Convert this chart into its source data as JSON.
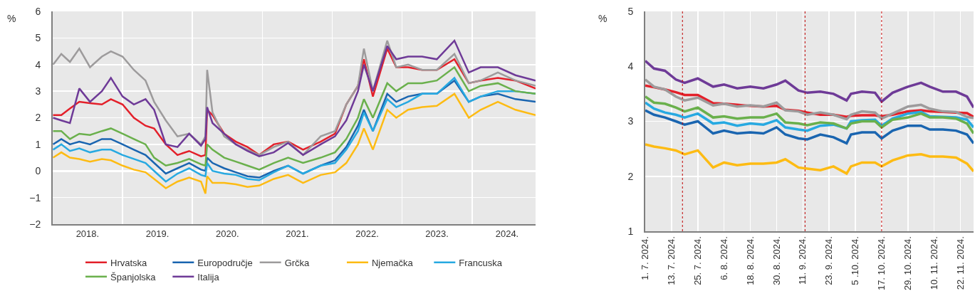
{
  "chart_data": [
    {
      "type": "line",
      "ylabel": "%",
      "legend": "bottom",
      "grid": true,
      "marker": "none",
      "line_style": "solid",
      "x": [
        "2018-01-03",
        "2018-02-15",
        "2018-04-01",
        "2018-05-20",
        "2018-07-15",
        "2018-09-15",
        "2018-11-01",
        "2019-01-01",
        "2019-03-01",
        "2019-05-01",
        "2019-06-15",
        "2019-08-15",
        "2019-10-15",
        "2019-12-15",
        "2020-02-15",
        "2020-03-09",
        "2020-03-18",
        "2020-04-15",
        "2020-06-15",
        "2020-08-15",
        "2020-10-15",
        "2020-12-15",
        "2021-03-01",
        "2021-05-15",
        "2021-08-01",
        "2021-11-01",
        "2022-01-15",
        "2022-03-15",
        "2022-05-15",
        "2022-06-15",
        "2022-08-01",
        "2022-10-15",
        "2022-12-01",
        "2023-02-01",
        "2023-04-15",
        "2023-07-01",
        "2023-10-01",
        "2023-12-15",
        "2024-02-15",
        "2024-05-15",
        "2024-08-15",
        "2024-11-28"
      ],
      "xlim": [
        "2018-01-01",
        "2024-11-28"
      ],
      "xticks": [
        {
          "value": "2018-07-02",
          "label": "2018."
        },
        {
          "value": "2019-01-01",
          "label": null
        },
        {
          "value": "2019-07-02",
          "label": "2019."
        },
        {
          "value": "2020-01-01",
          "label": null
        },
        {
          "value": "2020-07-02",
          "label": "2020."
        },
        {
          "value": "2021-01-01",
          "label": null
        },
        {
          "value": "2021-07-02",
          "label": "2021."
        },
        {
          "value": "2022-01-01",
          "label": null
        },
        {
          "value": "2022-07-02",
          "label": "2022."
        },
        {
          "value": "2023-01-01",
          "label": null
        },
        {
          "value": "2023-07-02",
          "label": "2023."
        },
        {
          "value": "2024-01-01",
          "label": null
        },
        {
          "value": "2024-07-02",
          "label": "2024."
        }
      ],
      "ylim": [
        -2,
        6
      ],
      "yticks": [
        {
          "value": -2,
          "label": "−2"
        },
        {
          "value": -1,
          "label": "−1"
        },
        0,
        1,
        2,
        3,
        4,
        5,
        6
      ],
      "series": [
        {
          "name": "Hrvatska",
          "color": "#e3202a",
          "values": [
            2.1,
            2.1,
            2.35,
            2.6,
            2.55,
            2.5,
            2.7,
            2.5,
            2.0,
            1.7,
            1.6,
            1.0,
            0.6,
            0.75,
            0.55,
            0.6,
            2.3,
            2.1,
            1.4,
            1.1,
            0.9,
            0.6,
            1.0,
            1.1,
            0.8,
            1.1,
            1.4,
            2.5,
            3.2,
            4.2,
            2.8,
            4.6,
            3.9,
            3.9,
            3.8,
            3.8,
            4.2,
            3.3,
            3.4,
            3.5,
            3.4,
            3.1
          ]
        },
        {
          "name": "Europodručje",
          "color": "#1a65b0",
          "values": [
            1.0,
            1.2,
            1.0,
            1.1,
            1.0,
            1.2,
            1.2,
            1.0,
            0.8,
            0.6,
            0.3,
            -0.1,
            0.1,
            0.3,
            0.05,
            0.0,
            0.5,
            0.3,
            0.1,
            -0.05,
            -0.2,
            -0.25,
            0.0,
            0.2,
            -0.1,
            0.2,
            0.4,
            0.9,
            1.7,
            2.3,
            1.5,
            2.9,
            2.6,
            2.8,
            2.9,
            2.9,
            3.4,
            2.6,
            2.8,
            2.9,
            2.7,
            2.6
          ]
        },
        {
          "name": "Grčka",
          "color": "#9d9b9c",
          "values": [
            4.0,
            4.4,
            4.1,
            4.6,
            3.9,
            4.3,
            4.5,
            4.3,
            3.8,
            3.4,
            2.6,
            1.9,
            1.3,
            1.4,
            1.0,
            1.3,
            3.8,
            2.2,
            1.3,
            1.0,
            0.8,
            0.6,
            0.9,
            1.1,
            0.6,
            1.3,
            1.5,
            2.5,
            3.2,
            4.6,
            3.0,
            4.9,
            3.9,
            4.0,
            3.8,
            3.8,
            4.4,
            3.3,
            3.4,
            3.7,
            3.4,
            3.2
          ]
        },
        {
          "name": "Njemačka",
          "color": "#fdbb13",
          "values": [
            0.5,
            0.7,
            0.5,
            0.45,
            0.35,
            0.45,
            0.4,
            0.2,
            0.05,
            -0.05,
            -0.3,
            -0.65,
            -0.4,
            -0.25,
            -0.4,
            -0.85,
            -0.2,
            -0.45,
            -0.45,
            -0.5,
            -0.6,
            -0.55,
            -0.3,
            -0.15,
            -0.45,
            -0.15,
            -0.05,
            0.3,
            1.0,
            1.6,
            0.8,
            2.3,
            2.0,
            2.3,
            2.4,
            2.45,
            2.9,
            2.0,
            2.3,
            2.6,
            2.3,
            2.1
          ]
        },
        {
          "name": "Francuska",
          "color": "#27a9e1",
          "values": [
            0.8,
            1.0,
            0.75,
            0.85,
            0.7,
            0.8,
            0.8,
            0.6,
            0.45,
            0.3,
            0.0,
            -0.4,
            -0.1,
            0.1,
            -0.15,
            -0.2,
            0.3,
            0.0,
            -0.1,
            -0.15,
            -0.3,
            -0.35,
            -0.05,
            0.2,
            -0.1,
            0.2,
            0.3,
            0.8,
            1.5,
            2.2,
            1.5,
            2.7,
            2.4,
            2.6,
            2.9,
            2.9,
            3.5,
            2.6,
            2.8,
            3.0,
            3.0,
            2.9
          ]
        },
        {
          "name": "Španjolska",
          "color": "#6ab04c",
          "values": [
            1.5,
            1.5,
            1.2,
            1.4,
            1.35,
            1.5,
            1.6,
            1.4,
            1.2,
            1.0,
            0.5,
            0.2,
            0.3,
            0.45,
            0.25,
            0.2,
            1.0,
            0.8,
            0.5,
            0.35,
            0.2,
            0.05,
            0.3,
            0.5,
            0.3,
            0.5,
            0.7,
            1.2,
            2.0,
            2.7,
            2.0,
            3.3,
            3.0,
            3.3,
            3.3,
            3.4,
            3.9,
            3.0,
            3.2,
            3.3,
            3.0,
            2.9
          ]
        },
        {
          "name": "Italija",
          "color": "#6e3a97",
          "values": [
            2.0,
            1.9,
            1.8,
            3.1,
            2.6,
            3.0,
            3.5,
            2.8,
            2.5,
            2.7,
            2.3,
            1.0,
            0.9,
            1.4,
            0.95,
            1.2,
            2.4,
            1.8,
            1.4,
            1.0,
            0.75,
            0.55,
            0.7,
            1.05,
            0.6,
            1.0,
            1.3,
            1.9,
            3.0,
            4.0,
            3.0,
            4.7,
            4.2,
            4.3,
            4.3,
            4.2,
            4.9,
            3.7,
            3.9,
            3.9,
            3.6,
            3.4
          ]
        }
      ]
    },
    {
      "type": "line",
      "ylabel": "%",
      "legend": false,
      "grid": true,
      "marker": "none",
      "line_style": "solid",
      "x": [
        "2024-07-01",
        "2024-07-05",
        "2024-07-10",
        "2024-07-15",
        "2024-07-19",
        "2024-07-25",
        "2024-08-01",
        "2024-08-06",
        "2024-08-12",
        "2024-08-18",
        "2024-08-24",
        "2024-08-30",
        "2024-09-03",
        "2024-09-09",
        "2024-09-13",
        "2024-09-19",
        "2024-09-25",
        "2024-10-01",
        "2024-10-03",
        "2024-10-08",
        "2024-10-14",
        "2024-10-17",
        "2024-10-22",
        "2024-10-29",
        "2024-11-04",
        "2024-11-08",
        "2024-11-14",
        "2024-11-20",
        "2024-11-25",
        "2024-11-28"
      ],
      "xlim": [
        "2024-07-01",
        "2024-11-28"
      ],
      "xticks": [
        {
          "value": "2024-07-01",
          "label": "1. 7. 2024."
        },
        {
          "value": "2024-07-13",
          "label": "13. 7. 2024."
        },
        {
          "value": "2024-07-25",
          "label": "25. 7. 2024."
        },
        {
          "value": "2024-08-06",
          "label": "6. 8. 2024."
        },
        {
          "value": "2024-08-18",
          "label": "18. 8. 2024."
        },
        {
          "value": "2024-08-30",
          "label": "30. 8. 2024."
        },
        {
          "value": "2024-09-11",
          "label": "11. 9. 2024."
        },
        {
          "value": "2024-09-23",
          "label": "23. 9. 2024."
        },
        {
          "value": "2024-10-05",
          "label": "5 .10. 2024."
        },
        {
          "value": "2024-10-17",
          "label": "17. 10. 2024."
        },
        {
          "value": "2024-10-29",
          "label": "29. 10. 2024."
        },
        {
          "value": "2024-11-10",
          "label": "10. 11. 2024."
        },
        {
          "value": "2024-11-22",
          "label": "22. 11. 2024."
        }
      ],
      "ylim": [
        1,
        5
      ],
      "yticks": [
        1,
        2,
        3,
        4,
        5
      ],
      "ref_lines": [
        {
          "axis": "x",
          "value": "2024-07-18",
          "label": null,
          "color": "#c00000",
          "line_style": "dotted"
        },
        {
          "axis": "x",
          "value": "2024-09-12",
          "label": null,
          "color": "#c00000",
          "line_style": "dotted"
        },
        {
          "axis": "x",
          "value": "2024-10-17",
          "label": null,
          "color": "#c00000",
          "line_style": "dotted"
        }
      ],
      "series": [
        {
          "color": "#e3202a",
          "values": [
            3.65,
            3.62,
            3.58,
            3.53,
            3.48,
            3.48,
            3.33,
            3.32,
            3.3,
            3.28,
            3.27,
            3.28,
            3.21,
            3.19,
            3.16,
            3.12,
            3.12,
            3.08,
            3.1,
            3.11,
            3.11,
            3.09,
            3.12,
            3.18,
            3.2,
            3.18,
            3.17,
            3.16,
            3.15,
            3.08
          ]
        },
        {
          "color": "#1a65b0",
          "values": [
            3.2,
            3.12,
            3.07,
            3.0,
            2.94,
            3.0,
            2.78,
            2.83,
            2.78,
            2.8,
            2.78,
            2.89,
            2.76,
            2.69,
            2.67,
            2.76,
            2.71,
            2.6,
            2.76,
            2.8,
            2.8,
            2.69,
            2.83,
            2.92,
            2.92,
            2.85,
            2.85,
            2.83,
            2.76,
            2.6
          ]
        },
        {
          "color": "#9d9b9c",
          "values": [
            3.76,
            3.63,
            3.58,
            3.45,
            3.38,
            3.43,
            3.29,
            3.32,
            3.27,
            3.29,
            3.27,
            3.34,
            3.2,
            3.18,
            3.12,
            3.16,
            3.12,
            3.04,
            3.12,
            3.18,
            3.16,
            3.05,
            3.14,
            3.27,
            3.3,
            3.23,
            3.18,
            3.17,
            3.08,
            3.06
          ]
        },
        {
          "color": "#fdbb13",
          "values": [
            2.58,
            2.54,
            2.51,
            2.47,
            2.4,
            2.47,
            2.16,
            2.25,
            2.2,
            2.23,
            2.23,
            2.25,
            2.31,
            2.16,
            2.14,
            2.11,
            2.18,
            2.05,
            2.18,
            2.25,
            2.25,
            2.18,
            2.29,
            2.38,
            2.4,
            2.36,
            2.36,
            2.34,
            2.23,
            2.09
          ]
        },
        {
          "color": "#27a9e1",
          "values": [
            3.34,
            3.23,
            3.16,
            3.12,
            3.07,
            3.14,
            2.96,
            2.98,
            2.92,
            2.96,
            2.94,
            3.02,
            2.89,
            2.85,
            2.83,
            2.92,
            2.94,
            2.87,
            3.0,
            3.02,
            3.03,
            2.92,
            3.05,
            3.14,
            3.17,
            3.09,
            3.08,
            3.07,
            3.03,
            2.89
          ]
        },
        {
          "color": "#6ab04c",
          "values": [
            3.45,
            3.34,
            3.32,
            3.25,
            3.18,
            3.25,
            3.07,
            3.09,
            3.05,
            3.07,
            3.07,
            3.14,
            2.98,
            2.96,
            2.93,
            2.98,
            2.96,
            2.87,
            2.96,
            3.0,
            3.0,
            2.89,
            3.03,
            3.07,
            3.14,
            3.07,
            3.07,
            3.05,
            2.96,
            2.78
          ]
        },
        {
          "color": "#6e3a97",
          "values": [
            4.1,
            3.96,
            3.92,
            3.76,
            3.7,
            3.78,
            3.63,
            3.67,
            3.6,
            3.63,
            3.6,
            3.67,
            3.74,
            3.56,
            3.52,
            3.54,
            3.5,
            3.38,
            3.5,
            3.54,
            3.52,
            3.36,
            3.52,
            3.63,
            3.7,
            3.63,
            3.54,
            3.54,
            3.45,
            3.25
          ]
        }
      ]
    }
  ]
}
